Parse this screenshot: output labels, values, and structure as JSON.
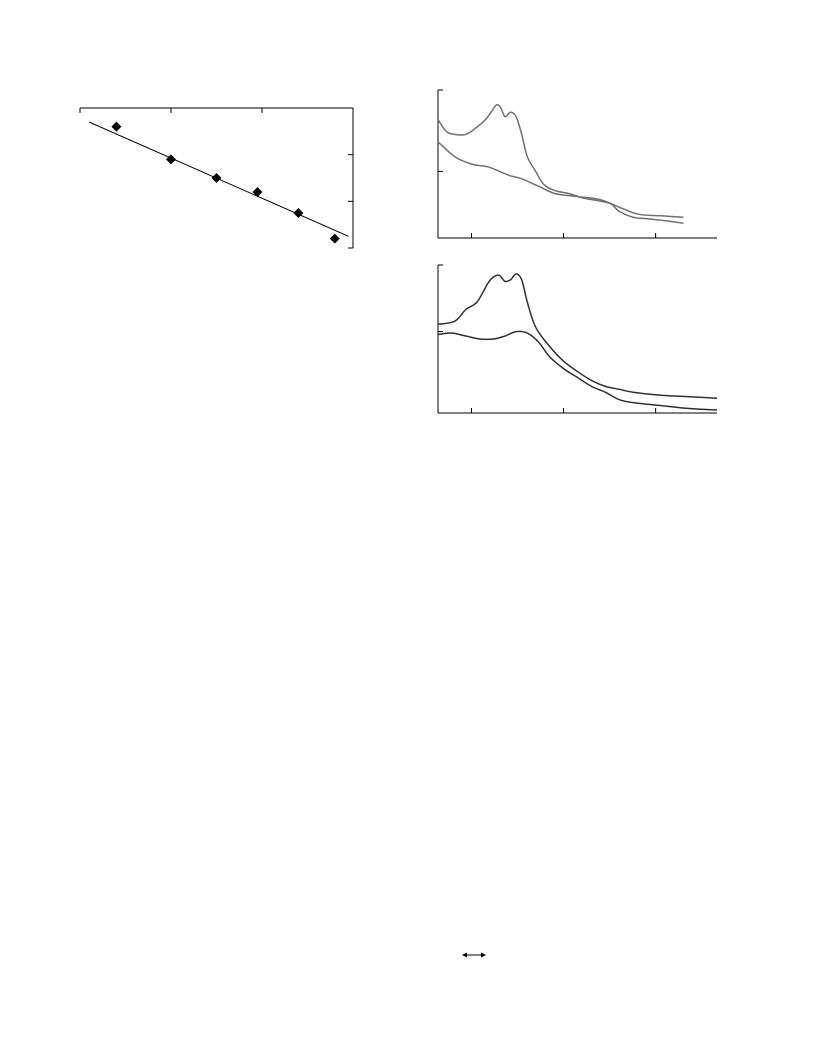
{
  "chart_data": [
    {
      "type": "scatter",
      "title": "",
      "xlabel": "",
      "ylabel": "",
      "xlim": [
        0,
        3
      ],
      "ylim": [
        0,
        3
      ],
      "grid": false,
      "x_tick_values": [
        0,
        1,
        2,
        3
      ],
      "y_tick_values": [
        0,
        1,
        2,
        3
      ],
      "points": {
        "x": [
          0.4,
          1.0,
          1.5,
          1.95,
          2.4,
          2.8
        ],
        "y": [
          2.6,
          1.9,
          1.5,
          1.2,
          0.75,
          0.2
        ]
      },
      "fit_line": {
        "x": [
          0.1,
          2.95
        ],
        "y": [
          2.7,
          0.25
        ]
      },
      "marker_color": "#000000",
      "line_color": "#000000"
    },
    {
      "type": "line",
      "title": "",
      "xlabel": "",
      "ylabel": "",
      "xlim": [
        0,
        100
      ],
      "ylim": [
        0,
        100
      ],
      "grid": false,
      "x_tick_values": [
        12,
        45,
        78
      ],
      "y_tick_values": [
        45,
        100
      ],
      "series": [
        {
          "color": "#707070",
          "x": [
            0,
            3,
            6,
            10,
            14,
            17,
            19,
            21,
            22.5,
            24,
            26,
            28,
            30,
            32,
            35,
            38,
            42,
            47,
            52,
            58,
            62,
            65,
            70,
            75,
            80,
            88
          ],
          "y": [
            80,
            72,
            70,
            70,
            75,
            80,
            85,
            90,
            88,
            82,
            85,
            82,
            70,
            55,
            45,
            36,
            32,
            30,
            27,
            25,
            23,
            18,
            14,
            13,
            12,
            10
          ]
        },
        {
          "color": "#707070",
          "x": [
            0,
            6,
            12,
            18,
            22,
            26,
            30,
            36,
            42,
            50,
            58,
            66,
            72,
            80,
            88
          ],
          "y": [
            65,
            55,
            50,
            48,
            45,
            42,
            40,
            35,
            30,
            28,
            26,
            20,
            16,
            15,
            14
          ]
        }
      ]
    },
    {
      "type": "line",
      "title": "",
      "xlabel": "",
      "ylabel": "",
      "xlim": [
        0,
        100
      ],
      "ylim": [
        0,
        100
      ],
      "grid": false,
      "x_tick_values": [
        12,
        45,
        78
      ],
      "y_tick_values": [
        55,
        100
      ],
      "series": [
        {
          "color": "#303030",
          "x": [
            0,
            6,
            10,
            14,
            18,
            20,
            22,
            24,
            26,
            28,
            30,
            32,
            35,
            40,
            45,
            50,
            55,
            60,
            65,
            70,
            80,
            90,
            100
          ],
          "y": [
            60,
            62,
            70,
            75,
            88,
            92,
            93,
            89,
            90,
            94,
            90,
            75,
            58,
            45,
            35,
            28,
            22,
            18,
            16,
            14,
            12,
            11,
            10
          ]
        },
        {
          "color": "#303030",
          "x": [
            0,
            5,
            10,
            15,
            20,
            24,
            28,
            32,
            36,
            40,
            45,
            50,
            55,
            60,
            65,
            70,
            80,
            90,
            100
          ],
          "y": [
            53,
            54,
            52,
            50,
            50,
            52,
            55,
            54,
            48,
            38,
            30,
            24,
            18,
            14,
            9,
            7,
            5,
            3,
            2
          ]
        }
      ]
    }
  ]
}
